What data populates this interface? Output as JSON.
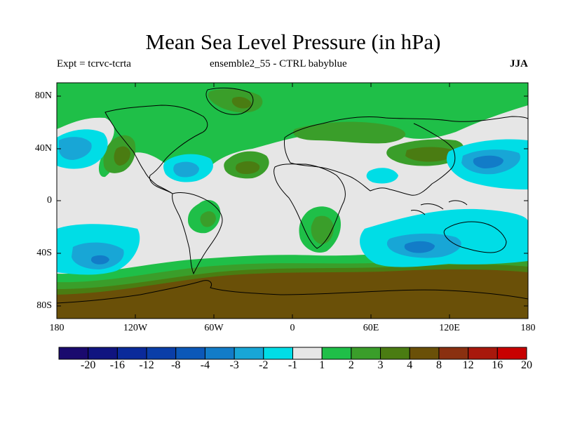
{
  "title": "Mean Sea Level Pressure (in hPa)",
  "subtitle_left": "Expt = tcrvc-tcrta",
  "subtitle_center": "ensemble2_55 - CTRL babyblue",
  "subtitle_right": "JJA",
  "lat_labels": [
    "80N",
    "40N",
    "0",
    "40S",
    "80S"
  ],
  "lon_labels": [
    "180",
    "120W",
    "60W",
    "0",
    "60E",
    "120E",
    "180"
  ],
  "colorbar": {
    "labels": [
      "-20",
      "-16",
      "-12",
      "-8",
      "-4",
      "-3",
      "-2",
      "-1",
      "1",
      "2",
      "3",
      "4",
      "8",
      "12",
      "16",
      "20"
    ],
    "colors": [
      "#1a0a6e",
      "#101480",
      "#0a2a9a",
      "#0a3ea8",
      "#0c58b8",
      "#127cc8",
      "#18a6d6",
      "#00dde6",
      "#e6e6e6",
      "#1fbf48",
      "#3a9e2a",
      "#4a7c12",
      "#6a5008",
      "#8a3010",
      "#a8180c",
      "#c80000"
    ]
  },
  "colors": {
    "neutral": "#e6e6e6",
    "frame": "#000000"
  }
}
